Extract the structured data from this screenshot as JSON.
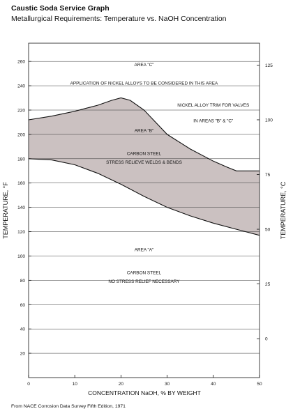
{
  "header": {
    "title": "Caustic Soda Service Graph",
    "subtitle": "Metallurgical Requirements: Temperature vs. NaOH Concentration"
  },
  "footer": {
    "source": "From NACE Corrosion Data Survey Fifth Edition, 1971"
  },
  "chart_data": {
    "type": "area",
    "xlabel": "CONCENTRATION NaOH, % BY WEIGHT",
    "ylabel": "TEMPERATURE, °F",
    "y2label": "TEMPERATURE, °C",
    "xlim": [
      0,
      50
    ],
    "ylim": [
      0,
      275
    ],
    "xticks": [
      0,
      10,
      20,
      30,
      40,
      50
    ],
    "yticks": [
      20,
      40,
      60,
      80,
      100,
      120,
      140,
      160,
      180,
      200,
      220,
      240,
      260
    ],
    "y2ticks": [
      0,
      25,
      50,
      75,
      100,
      125
    ],
    "grid": "horizontal",
    "series": [
      {
        "role": "boundary-upper",
        "x": [
          0,
          5,
          10,
          15,
          18,
          20,
          22,
          25,
          30,
          35,
          40,
          43,
          45,
          50
        ],
        "y": [
          212,
          215,
          219,
          224,
          228,
          230,
          228,
          220,
          200,
          188,
          178,
          173,
          170,
          170
        ]
      },
      {
        "role": "boundary-lower",
        "x": [
          0,
          5,
          10,
          15,
          20,
          25,
          30,
          35,
          40,
          45,
          50
        ],
        "y": [
          180,
          179,
          175,
          168,
          159,
          149,
          140,
          133,
          127,
          122,
          117
        ]
      }
    ],
    "annotations": [
      {
        "text": "AREA \"C\"",
        "x": 25,
        "y": 256
      },
      {
        "text": "APPLICATION OF NICKEL ALLOYS TO BE CONSIDERED IN THIS AREA",
        "x": 25,
        "y": 241
      },
      {
        "text": "NICKEL ALLOY TRIM FOR VALVES",
        "x": 40,
        "y": 223
      },
      {
        "text": "IN AREAS \"B\" & \"C\"",
        "x": 40,
        "y": 210
      },
      {
        "text": "AREA \"B\"",
        "x": 25,
        "y": 202
      },
      {
        "text": "CARBON STEEL",
        "x": 25,
        "y": 183
      },
      {
        "text": "STRESS RELIEVE WELDS & BENDS",
        "x": 25,
        "y": 176
      },
      {
        "text": "AREA \"A\"",
        "x": 25,
        "y": 104
      },
      {
        "text": "CARBON STEEL",
        "x": 25,
        "y": 85
      },
      {
        "text": "NO STRESS RELIEF NECESSARY",
        "x": 25,
        "y": 78
      }
    ],
    "colors": {
      "fill": "#cbc1c1",
      "line": "#111111",
      "grid": "#333333"
    }
  }
}
